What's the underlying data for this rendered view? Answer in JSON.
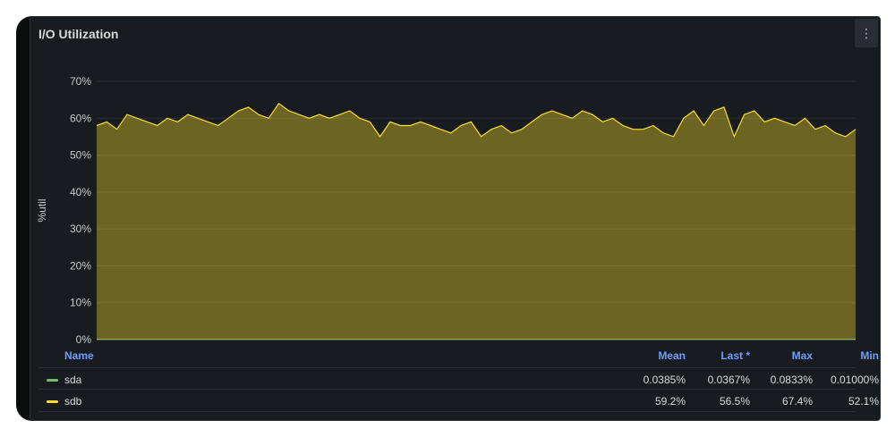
{
  "panel": {
    "title": "I/O Utilization",
    "menu_icon": "⋮"
  },
  "chart_data": {
    "type": "area",
    "ylabel": "%util",
    "y_ticks": [
      "0%",
      "10%",
      "20%",
      "30%",
      "40%",
      "50%",
      "60%",
      "70%"
    ],
    "ylim": [
      0,
      70
    ],
    "grid": true,
    "series": [
      {
        "name": "sda",
        "color": "#73bf69",
        "values": [
          0.04,
          0.04,
          0.04,
          0.04,
          0.04,
          0.04,
          0.04,
          0.04,
          0.04,
          0.04,
          0.04,
          0.04,
          0.04,
          0.04,
          0.04,
          0.04,
          0.04,
          0.04,
          0.04,
          0.04,
          0.04,
          0.04,
          0.04,
          0.04,
          0.04,
          0.04,
          0.04,
          0.04,
          0.04,
          0.04,
          0.04,
          0.04,
          0.04,
          0.04,
          0.04,
          0.04,
          0.04,
          0.04,
          0.04,
          0.04,
          0.04,
          0.04,
          0.04,
          0.04,
          0.04,
          0.04,
          0.04,
          0.04,
          0.04,
          0.04
        ]
      },
      {
        "name": "sdb",
        "color": "#fade2a",
        "values": [
          58,
          59,
          57,
          61,
          60,
          59,
          58,
          60,
          59,
          61,
          60,
          59,
          58,
          60,
          62,
          63,
          61,
          60,
          64,
          62,
          61,
          60,
          61,
          60,
          61,
          62,
          60,
          59,
          55,
          59,
          58,
          58,
          59,
          58,
          57,
          56,
          58,
          59,
          55,
          57,
          58,
          56,
          57,
          59,
          61,
          62,
          61,
          60,
          62,
          61,
          59,
          60,
          58,
          57,
          57,
          58,
          56,
          55,
          60,
          62,
          58,
          62,
          63,
          55,
          61,
          62,
          59,
          60,
          59,
          58,
          60,
          57,
          58,
          56,
          55,
          57
        ]
      }
    ]
  },
  "legend": {
    "headers": {
      "name": "Name",
      "mean": "Mean",
      "last": "Last *",
      "max": "Max",
      "min": "Min"
    },
    "rows": [
      {
        "name": "sda",
        "color": "#73bf69",
        "mean": "0.0385%",
        "last": "0.0367%",
        "max": "0.0833%",
        "min": "0.01000%"
      },
      {
        "name": "sdb",
        "color": "#fade2a",
        "mean": "59.2%",
        "last": "56.5%",
        "max": "67.4%",
        "min": "52.1%"
      }
    ]
  }
}
